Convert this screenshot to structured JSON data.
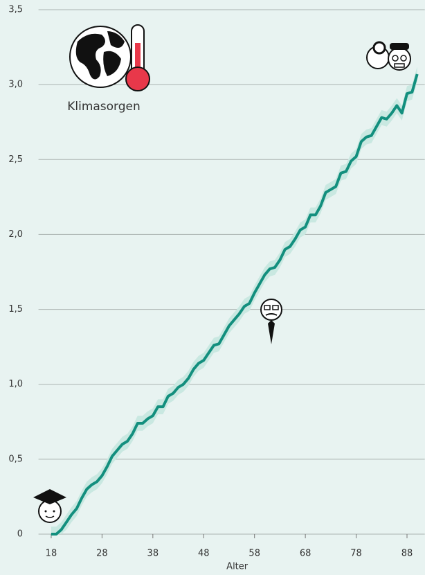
{
  "chart_data": {
    "type": "line",
    "annotation": "Klimasorgen",
    "xlabel": "Alter",
    "x": [
      18,
      19,
      20,
      21,
      22,
      23,
      24,
      25,
      26,
      27,
      28,
      29,
      30,
      31,
      32,
      33,
      34,
      35,
      36,
      37,
      38,
      39,
      40,
      41,
      42,
      43,
      44,
      45,
      46,
      47,
      48,
      49,
      50,
      51,
      52,
      53,
      54,
      55,
      56,
      57,
      58,
      59,
      60,
      61,
      62,
      63,
      64,
      65,
      66,
      67,
      68,
      69,
      70,
      71,
      72,
      73,
      74,
      75,
      76,
      77,
      78,
      79,
      80,
      81,
      82,
      83,
      84,
      85,
      86,
      87,
      88,
      89,
      90
    ],
    "series": [
      {
        "color": "#138f7e",
        "band": 0.05,
        "band_color": "#c9e8e1",
        "values": [
          0,
          0,
          0.03,
          0.08,
          0.13,
          0.17,
          0.24,
          0.3,
          0.33,
          0.35,
          0.39,
          0.45,
          0.52,
          0.56,
          0.6,
          0.62,
          0.67,
          0.74,
          0.74,
          0.77,
          0.79,
          0.85,
          0.85,
          0.92,
          0.94,
          0.98,
          1.0,
          1.04,
          1.1,
          1.14,
          1.16,
          1.21,
          1.26,
          1.27,
          1.33,
          1.39,
          1.43,
          1.47,
          1.52,
          1.54,
          1.61,
          1.67,
          1.73,
          1.77,
          1.78,
          1.83,
          1.9,
          1.92,
          1.97,
          2.03,
          2.05,
          2.13,
          2.13,
          2.19,
          2.28,
          2.3,
          2.32,
          2.41,
          2.42,
          2.49,
          2.52,
          2.62,
          2.65,
          2.66,
          2.72,
          2.78,
          2.77,
          2.81,
          2.86,
          2.81,
          2.94,
          2.95,
          3.07
        ]
      }
    ],
    "xlim": [
      15.5,
      91.5
    ],
    "xticks": [
      18,
      28,
      38,
      48,
      58,
      68,
      78,
      88
    ],
    "ylim": [
      0,
      3.5
    ],
    "yticks": [
      0,
      {
        "value": 0.5,
        "label": "0,5"
      },
      {
        "value": 1,
        "label": "1,0"
      },
      {
        "value": 1.5,
        "label": "1,5"
      },
      {
        "value": 2,
        "label": "2,0"
      },
      {
        "value": 2.5,
        "label": "2,5"
      },
      {
        "value": 3,
        "label": "3,0"
      },
      {
        "value": 3.5,
        "label": "3,5"
      }
    ],
    "grid": true
  }
}
